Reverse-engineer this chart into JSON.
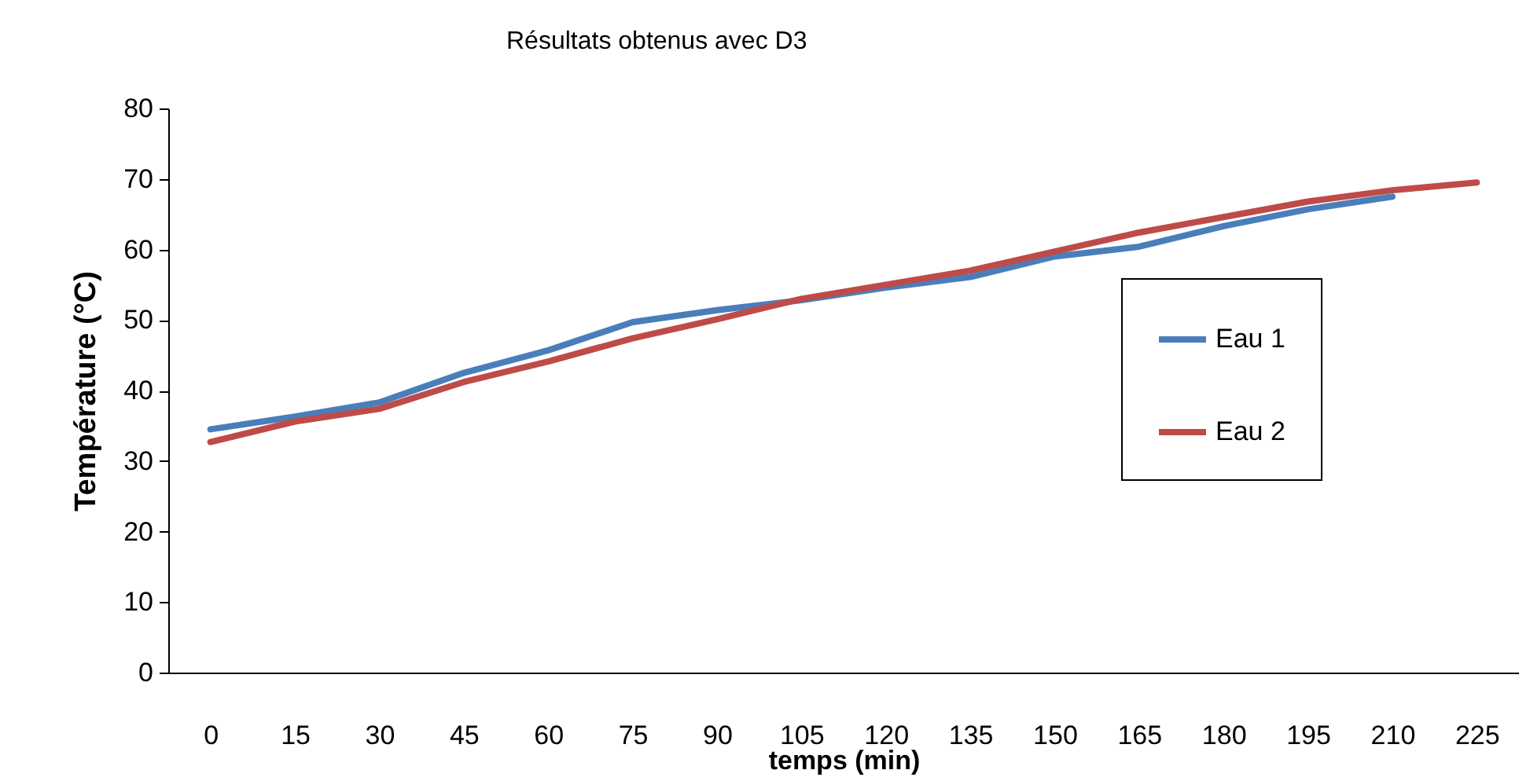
{
  "chart_data": {
    "type": "line",
    "title": "Résultats obtenus avec D3",
    "xlabel": "temps (min)",
    "ylabel": "Température (°C)",
    "categories": [
      "0",
      "15",
      "30",
      "45",
      "60",
      "75",
      "90",
      "105",
      "120",
      "135",
      "150",
      "165",
      "180",
      "195",
      "210",
      "225"
    ],
    "ylim": [
      0,
      80
    ],
    "yticks": [
      0,
      10,
      20,
      30,
      40,
      50,
      60,
      70,
      80
    ],
    "grid": false,
    "legend": "right",
    "marker": "none",
    "line_style": "solid",
    "series": [
      {
        "name": "Eau 1",
        "color": "#4a7ebb",
        "values": [
          34.5,
          36.3,
          38.3,
          42.5,
          45.7,
          49.7,
          51.4,
          52.8,
          54.6,
          56.1,
          59,
          60.4,
          63.3,
          65.7,
          67.5,
          null
        ]
      },
      {
        "name": "Eau 2",
        "color": "#be4b48",
        "values": [
          32.7,
          35.6,
          37.4,
          41.2,
          44.1,
          47.4,
          50.1,
          53,
          55,
          57,
          59.7,
          62.4,
          64.6,
          66.8,
          68.4,
          69.5
        ]
      }
    ]
  }
}
